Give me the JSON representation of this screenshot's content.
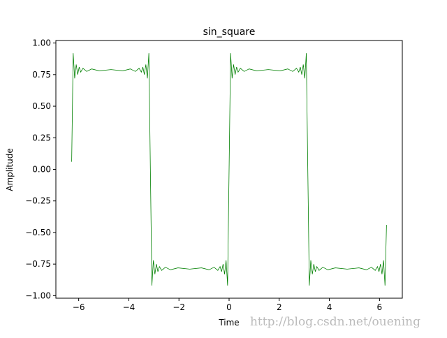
{
  "chart_data": {
    "type": "line",
    "title": "sin_square",
    "x_label": "Time",
    "y_label": "Amplitude",
    "watermark": "http://blog.csdn.net/ouening",
    "x": [
      -6.28,
      -6.22,
      -6.16,
      -6.1,
      -6.04,
      -5.98,
      -5.92,
      -5.83,
      -5.68,
      -5.48,
      -5.18,
      -4.71,
      -4.24,
      -3.94,
      -3.74,
      -3.59,
      -3.5,
      -3.44,
      -3.38,
      -3.32,
      -3.26,
      -3.2,
      -3.14,
      -3.08,
      -3.02,
      -2.96,
      -2.9,
      -2.84,
      -2.78,
      -2.69,
      -2.54,
      -2.34,
      -2.04,
      -1.57,
      -1.1,
      -0.8,
      -0.6,
      -0.45,
      -0.36,
      -0.3,
      -0.24,
      -0.18,
      -0.12,
      -0.06,
      0,
      0.06,
      0.12,
      0.18,
      0.24,
      0.3,
      0.36,
      0.45,
      0.6,
      0.8,
      1.1,
      1.57,
      2.04,
      2.34,
      2.54,
      2.69,
      2.78,
      2.84,
      2.9,
      2.96,
      3.02,
      3.08,
      3.14,
      3.2,
      3.26,
      3.32,
      3.38,
      3.44,
      3.5,
      3.59,
      3.74,
      3.94,
      4.24,
      4.71,
      5.18,
      5.48,
      5.68,
      5.83,
      5.92,
      5.98,
      6.04,
      6.1,
      6.16,
      6.22,
      6.28
    ],
    "series": [
      {
        "color": "#008000",
        "values": [
          0.06,
          0.92,
          0.72,
          0.83,
          0.75,
          0.81,
          0.77,
          0.8,
          0.775,
          0.795,
          0.78,
          0.79,
          0.78,
          0.795,
          0.775,
          0.8,
          0.77,
          0.81,
          0.75,
          0.83,
          0.72,
          0.92,
          0,
          -0.92,
          -0.72,
          -0.83,
          -0.75,
          -0.81,
          -0.77,
          -0.8,
          -0.775,
          -0.795,
          -0.78,
          -0.79,
          -0.78,
          -0.795,
          -0.775,
          -0.8,
          -0.77,
          -0.81,
          -0.75,
          -0.83,
          -0.72,
          -0.92,
          0,
          0.92,
          0.72,
          0.83,
          0.75,
          0.81,
          0.77,
          0.8,
          0.775,
          0.795,
          0.78,
          0.79,
          0.78,
          0.795,
          0.775,
          0.8,
          0.77,
          0.81,
          0.75,
          0.83,
          0.72,
          0.92,
          0,
          -0.92,
          -0.72,
          -0.83,
          -0.75,
          -0.81,
          -0.77,
          -0.8,
          -0.775,
          -0.795,
          -0.78,
          -0.79,
          -0.78,
          -0.795,
          -0.775,
          -0.8,
          -0.77,
          -0.81,
          -0.75,
          -0.83,
          -0.72,
          -0.92,
          -0.44
        ]
      }
    ],
    "xlim": [
      -6.91,
      6.91
    ],
    "ylim": [
      -1.02,
      1.02
    ],
    "xticks": [
      {
        "value": -6,
        "label": "−6"
      },
      {
        "value": -4,
        "label": "−4"
      },
      {
        "value": -2,
        "label": "−2"
      },
      0,
      2,
      4,
      6
    ],
    "yticks": [
      {
        "value": -1,
        "label": "−1.00"
      },
      {
        "value": -0.75,
        "label": "−0.75"
      },
      {
        "value": -0.5,
        "label": "−0.50"
      },
      {
        "value": -0.25,
        "label": "−0.25"
      },
      {
        "value": 0,
        "label": "0.00"
      },
      {
        "value": 0.25,
        "label": "0.25"
      },
      {
        "value": 0.5,
        "label": "0.50"
      },
      {
        "value": 0.75,
        "label": "0.75"
      },
      {
        "value": 1,
        "label": "1.00"
      }
    ],
    "grid": false
  }
}
